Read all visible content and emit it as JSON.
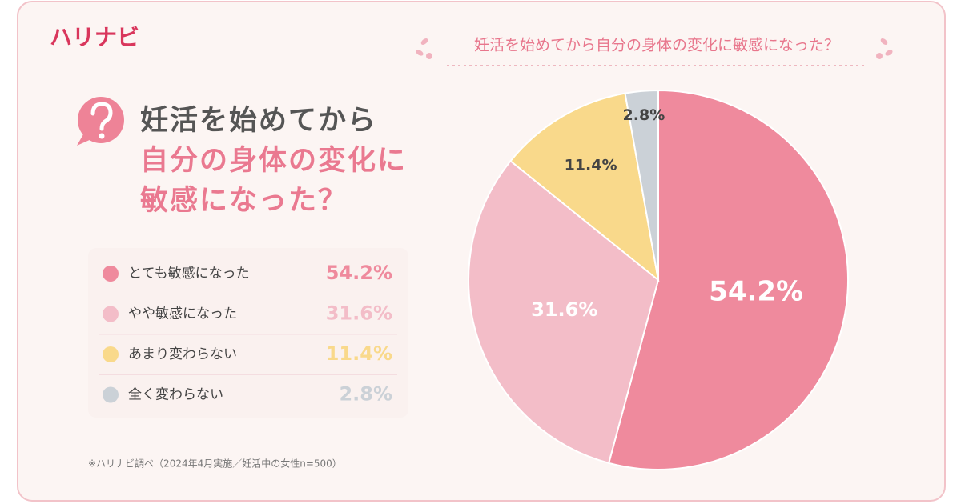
{
  "brand": "ハリナビ",
  "question": [
    "妊活を始めてから",
    "自分の身体の変化に",
    "敏感になった？"
  ],
  "footnote": "※ハリナビ調べ（2024年4月実施／妊活中の女性n=500）",
  "chart_data": {
    "type": "pie",
    "title": "妊活を始めてから自分の身体の変化に敏感になった？",
    "categories": [
      "とても敏感になった",
      "やや敏感になった",
      "あまり変わらない",
      "全く変わらない"
    ],
    "values": [
      54.2,
      31.6,
      11.4,
      2.8
    ],
    "value_labels": [
      "54.2%",
      "31.6%",
      "11.4%",
      "2.8%"
    ],
    "colors": [
      "#ef8a9d",
      "#f3bdc8",
      "#f9d98b",
      "#cbd1d7"
    ]
  }
}
